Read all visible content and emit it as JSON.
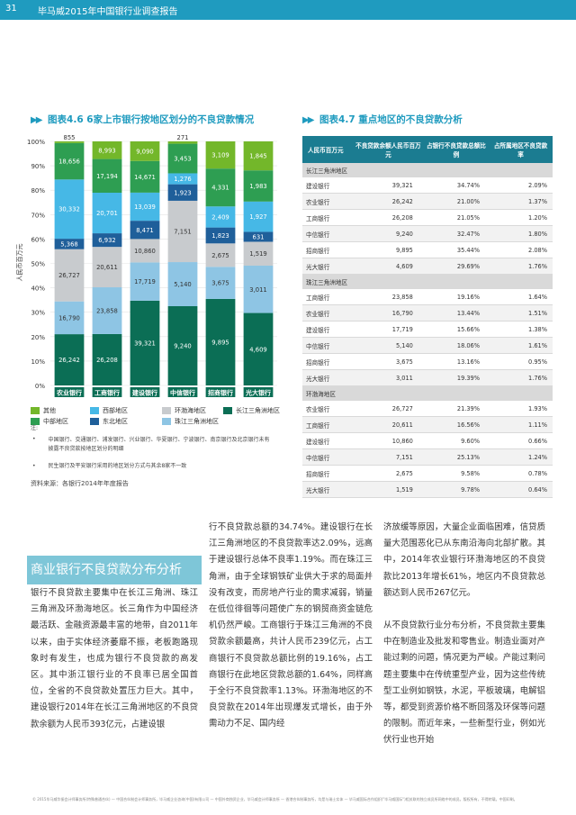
{
  "header": {
    "page_number": "31",
    "report_title": "毕马威2015年中国银行业调查报告"
  },
  "figure1": {
    "title": "图表4.6 6家上市银行按地区划分的不良贷款情况"
  },
  "chart_data": {
    "type": "bar",
    "stacked_percent": true,
    "title": "图表4.6 6家上市银行按地区划分的不良贷款情况",
    "ylabel": "人民币百万元",
    "ylim": [
      0,
      100
    ],
    "yticks": [
      "0%",
      "10%",
      "20%",
      "30%",
      "40%",
      "50%",
      "60%",
      "70%",
      "80%",
      "90%",
      "100%"
    ],
    "categories": [
      "农业银行",
      "工商银行",
      "建设银行",
      "中信银行",
      "招商银行",
      "光大银行"
    ],
    "series": [
      {
        "name": "长江三角洲地区",
        "color": "#0b6e55",
        "values": [
          26242,
          26208,
          39321,
          9240,
          9895,
          4609
        ]
      },
      {
        "name": "珠江三角洲地区",
        "color": "#8ec5e4",
        "values": [
          16790,
          23858,
          17719,
          5140,
          3675,
          3011
        ]
      },
      {
        "name": "环渤海地区",
        "color": "#c8cbce",
        "values": [
          26727,
          20611,
          10860,
          7151,
          2675,
          1519
        ]
      },
      {
        "name": "东北地区",
        "color": "#1f5f9a",
        "values": [
          5368,
          6932,
          8471,
          1923,
          1823,
          631
        ]
      },
      {
        "name": "西部地区",
        "color": "#46b8e6",
        "values": [
          30332,
          20701,
          13039,
          1276,
          2409,
          1927
        ]
      },
      {
        "name": "中部地区",
        "color": "#2e9e52",
        "values": [
          18656,
          17194,
          14671,
          3453,
          4331,
          1983
        ]
      },
      {
        "name": "其他",
        "color": "#73b72a",
        "values": [
          855,
          8993,
          9090,
          271,
          3109,
          1845
        ]
      }
    ],
    "segment_labels": [
      [
        "26,242",
        "16,790",
        "26,727",
        "5,368",
        "30,332",
        "18,656",
        "855"
      ],
      [
        "26,208",
        "23,858",
        "20,611",
        "6,932",
        "20,701",
        "17,194",
        "8,993"
      ],
      [
        "39,321",
        "17,719",
        "10,860",
        "8,471",
        "13,039",
        "14,671",
        "9,090"
      ],
      [
        "9,240",
        "5,140",
        "7,151",
        "1,923",
        "1,276",
        "3,453",
        "271"
      ],
      [
        "9,895",
        "3,675",
        "2,675",
        "1,823",
        "2,409",
        "4,331",
        "3,109"
      ],
      [
        "4,609",
        "3,011",
        "1,519",
        "631",
        "1,927",
        "1,983",
        "1,845"
      ]
    ]
  },
  "legend": [
    {
      "label": "其他",
      "color": "#73b72a"
    },
    {
      "label": "西部地区",
      "color": "#46b8e6"
    },
    {
      "label": "环渤海地区",
      "color": "#c8cbce"
    },
    {
      "label": "长江三角洲地区",
      "color": "#0b6e55"
    },
    {
      "label": "中部地区",
      "color": "#2e9e52"
    },
    {
      "label": "东北地区",
      "color": "#1f5f9a"
    },
    {
      "label": "珠江三角洲地区",
      "color": "#8ec5e4"
    }
  ],
  "notes": {
    "label": "注:",
    "items": [
      "中国银行、交通银行、浦发银行、兴业银行、华夏银行、宁波银行、南京银行及北京银行未有披露不良贷款按地区划分的明细",
      "民生银行及平安银行采用的地区划分方式与其余8家不一致"
    ],
    "source": "资料来源：各银行2014年年度报告"
  },
  "figure2": {
    "title": "图表4.7 重点地区的不良贷款分析"
  },
  "table": {
    "headers": [
      "人民币百万元",
      "不良贷款余额人民币百万元",
      "占银行不良贷款总额比例",
      "占所属地区不良贷款率"
    ],
    "sections": [
      {
        "name": "长江三角洲地区",
        "rows": [
          [
            "建设银行",
            "39,321",
            "34.74%",
            "2.09%"
          ],
          [
            "农业银行",
            "26,242",
            "21.00%",
            "1.37%"
          ],
          [
            "工商银行",
            "26,208",
            "21.05%",
            "1.20%"
          ],
          [
            "中信银行",
            "9,240",
            "32.47%",
            "1.80%"
          ],
          [
            "招商银行",
            "9,895",
            "35.44%",
            "2.08%"
          ],
          [
            "光大银行",
            "4,609",
            "29.69%",
            "1.76%"
          ]
        ]
      },
      {
        "name": "珠江三角洲地区",
        "rows": [
          [
            "工商银行",
            "23,858",
            "19.16%",
            "1.64%"
          ],
          [
            "农业银行",
            "16,790",
            "13.44%",
            "1.51%"
          ],
          [
            "建设银行",
            "17,719",
            "15.66%",
            "1.38%"
          ],
          [
            "中信银行",
            "5,140",
            "18.06%",
            "1.61%"
          ],
          [
            "招商银行",
            "3,675",
            "13.16%",
            "0.95%"
          ],
          [
            "光大银行",
            "3,011",
            "19.39%",
            "1.76%"
          ]
        ]
      },
      {
        "name": "环渤海地区",
        "rows": [
          [
            "农业银行",
            "26,727",
            "21.39%",
            "1.93%"
          ],
          [
            "工商银行",
            "20,611",
            "16.56%",
            "1.11%"
          ],
          [
            "建设银行",
            "10,860",
            "9.60%",
            "0.66%"
          ],
          [
            "中信银行",
            "7,151",
            "25.13%",
            "1.24%"
          ],
          [
            "招商银行",
            "2,675",
            "9.58%",
            "0.78%"
          ],
          [
            "光大银行",
            "1,519",
            "9.78%",
            "0.64%"
          ]
        ]
      }
    ]
  },
  "section_heading": "商业银行不良贷款分布分析",
  "body": {
    "col1": "银行不良贷款主要集中在长江三角洲、珠江三角洲及环渤海地区。长三角作为中国经济最活跃、金融资源最丰富的地带，自2011年以来，由于实体经济萎靡不振，老板跑路现象时有发生，也成为银行不良贷款的高发区。其中浙江银行业的不良率已居全国首位，全省的不良贷款处置压力巨大。其中，建设银行2014年在长江三角洲地区的不良贷款余额为人民币393亿元，占建设银",
    "col2": "行不良贷款总额的34.74%。建设银行在长江三角洲地区的不良贷款率达2.09%，远高于建设银行总体不良率1.19%。而在珠江三角洲，由于全球钢铁矿业供大于求的局面并没有改变，而房地产行业的需求减弱，销量在低位徘徊等问题使广东的钢贸商资金链危机仍然严峻。工商银行于珠江三角洲的不良贷款余额最高，共计人民币239亿元，占工商银行不良贷款总额比例的19.16%，占工商银行在此地区贷款总额的1.64%，同样高于全行不良贷款率1.13%。环渤海地区的不良贷款在2014年出现爆发式增长，由于外需动力不足、国内经",
    "col3a": "济放缓等原因，大量企业面临困难，信贷质量大范围恶化已从东南沿海向北部扩散。其中，2014年农业银行环渤海地区的不良贷款比2013年增长61%，地区内不良贷款总额达到人民币267亿元。",
    "col3b": "从不良贷款行业分布分析，不良贷款主要集中在制造业及批发和零售业。制造业面对产能过剩的问题，情况更为严峻。产能过剩问题主要集中在传统重型产业，因为这些传统型工业例如钢铁，水泥，平板玻璃，电解铝等，都受到资源价格不断回落及环保等问题的限制。而近年来，一些新型行业，例如光伏行业也开始"
  },
  "footer": "© 2015毕马威华振会计师事务所(特殊普通合伙) — 中国合伙制会计师事务所，毕马威企业咨询(中国)有限公司 — 中国外商独资企业，毕马威会计师事务所 — 香港合伙制事务所，均是与瑞士实体 — 毕马威国际合作组织(\"毕马威国际\")相关联的独立成员所网络中的成员。版权所有，不得转载。中国印刷。"
}
